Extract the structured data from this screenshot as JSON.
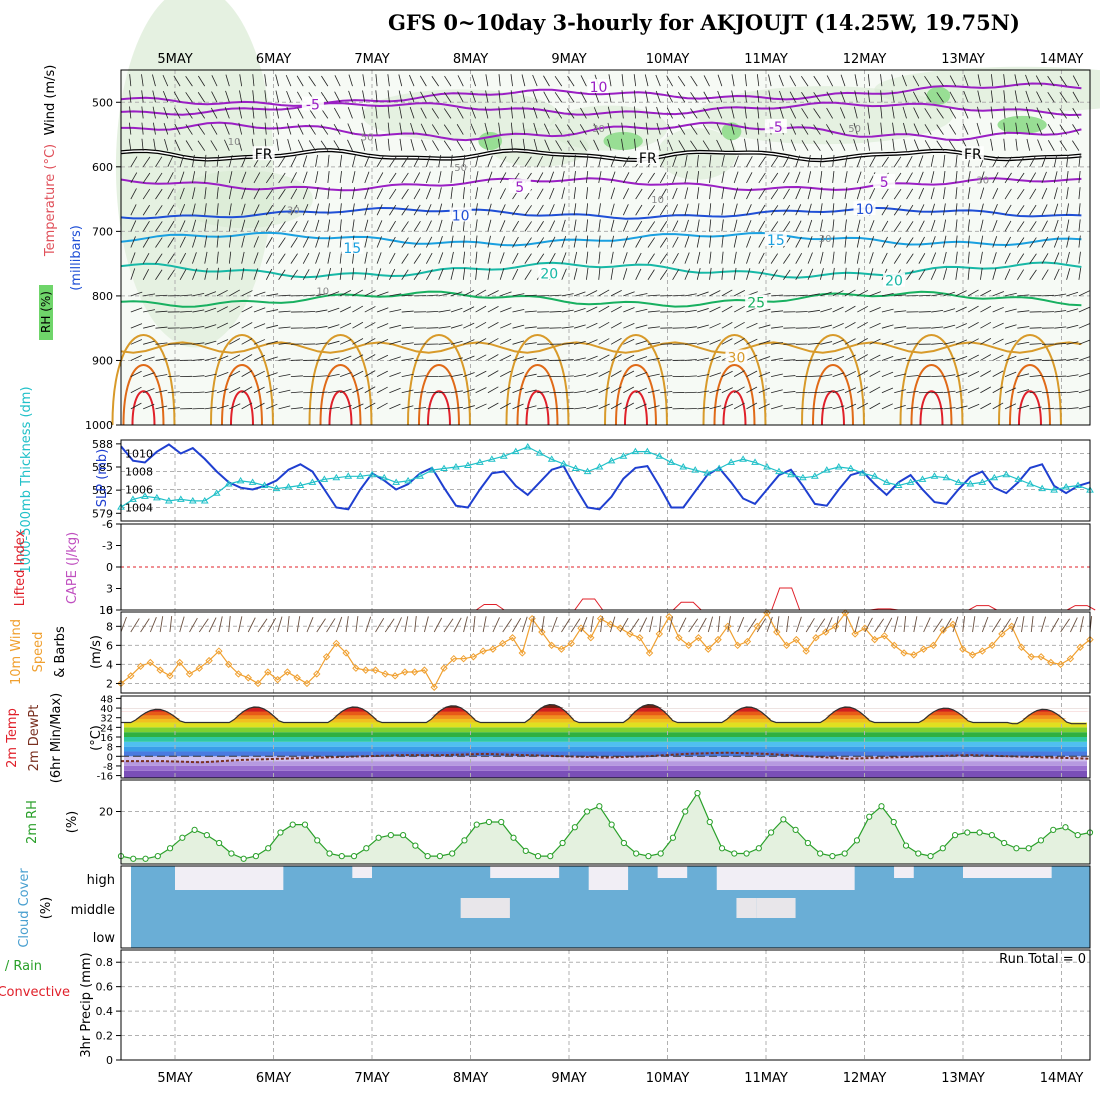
{
  "title": "GFS 0~10day 3-hourly for AKJOUJT (14.25W, 19.75N)",
  "colors": {
    "purple": "#9a1fc4",
    "blue": "#1f4fd6",
    "lightblue": "#1aa0e0",
    "teal": "#17b8a6",
    "green": "#18b060",
    "orange": "#d89a2a",
    "darkorange": "#e06a18",
    "red": "#e0202a",
    "slp": "#1f3fd0",
    "thickness": "#20c0c8",
    "wind": "#f0a030",
    "rh": "#2aa02a",
    "cloud": "#6aaed6",
    "grid": "#b0b0b0"
  },
  "chart_data": [
    {
      "id": "upper-air",
      "type": "contour",
      "dates": [
        "5MAY",
        "6MAY",
        "7MAY",
        "8MAY",
        "9MAY",
        "10MAY",
        "11MAY",
        "12MAY",
        "13MAY",
        "14MAY"
      ],
      "ylabel_wind": "Wind (m/s)",
      "ylabel_temp": "Temperature (°C)",
      "ylabel_rh": "RH (%)",
      "ylabel_units": "(millibars)",
      "yticks": [
        500,
        600,
        700,
        800,
        900,
        1000
      ],
      "ylim": [
        450,
        1000
      ],
      "freezing_label": "FR",
      "contour_labels": [
        {
          "text": "10",
          "value": 10,
          "day": 4.3,
          "p": 478,
          "color": "purple"
        },
        {
          "text": "-5",
          "value": -5,
          "day": 1.4,
          "p": 505,
          "color": "purple"
        },
        {
          "text": "-5",
          "value": -5,
          "day": 6.1,
          "p": 540,
          "color": "purple"
        },
        {
          "text": "FR",
          "value": 0,
          "day": 0.9,
          "p": 582,
          "color": "black"
        },
        {
          "text": "FR",
          "value": 0,
          "day": 4.8,
          "p": 588,
          "color": "black"
        },
        {
          "text": "FR",
          "value": 0,
          "day": 8.1,
          "p": 582,
          "color": "black"
        },
        {
          "text": "5",
          "value": 5,
          "day": 3.5,
          "p": 633,
          "color": "purple"
        },
        {
          "text": "5",
          "value": 5,
          "day": 7.2,
          "p": 625,
          "color": "purple"
        },
        {
          "text": "10",
          "value": 10,
          "day": 2.9,
          "p": 677,
          "color": "blue"
        },
        {
          "text": "10",
          "value": 10,
          "day": 7.0,
          "p": 667,
          "color": "blue"
        },
        {
          "text": "15",
          "value": 15,
          "day": 1.8,
          "p": 727,
          "color": "lightblue"
        },
        {
          "text": "15",
          "value": 15,
          "day": 6.1,
          "p": 715,
          "color": "lightblue"
        },
        {
          "text": "20",
          "value": 20,
          "day": 3.8,
          "p": 767,
          "color": "teal"
        },
        {
          "text": "20",
          "value": 20,
          "day": 7.3,
          "p": 778,
          "color": "teal"
        },
        {
          "text": "25",
          "value": 25,
          "day": 5.9,
          "p": 812,
          "color": "green"
        },
        {
          "text": "30",
          "value": 30,
          "day": 5.7,
          "p": 897,
          "color": "orange"
        }
      ],
      "rh_labels": [
        "10",
        "30",
        "50",
        "30",
        "50",
        "30",
        "50",
        "10",
        "30",
        "10"
      ]
    },
    {
      "id": "slp-thickness",
      "type": "line",
      "ylabel_left": "1000-500mb Thickness (dm)",
      "ylabel_right": "SLP (mb)",
      "left_ticks": [
        579,
        582,
        585,
        588
      ],
      "left_lim": [
        578,
        588.5
      ],
      "right_ticks": [
        1004,
        1006,
        1008,
        1010
      ],
      "right_lim": [
        1002.5,
        1011.5
      ],
      "series": [
        {
          "name": "SLP",
          "axis": "right",
          "values": [
            1010.8,
            1009.2,
            1009.0,
            1010.2,
            1011.0,
            1010.0,
            1010.6,
            1009.4,
            1008.0,
            1006.8,
            1006.2,
            1006.0,
            1006.4,
            1007.0,
            1008.2,
            1008.8,
            1008.0,
            1006.0,
            1004.0,
            1003.8,
            1006.0,
            1007.8,
            1007.0,
            1006.0,
            1006.6,
            1007.8,
            1008.4,
            1006.2,
            1004.2,
            1004.0,
            1006.0,
            1007.8,
            1008.0,
            1006.4,
            1005.4,
            1006.8,
            1008.2,
            1008.6,
            1006.2,
            1004.0,
            1003.8,
            1005.2,
            1007.2,
            1008.4,
            1008.6,
            1006.4,
            1004.0,
            1004.0,
            1005.8,
            1007.6,
            1008.4,
            1006.8,
            1005.0,
            1004.4,
            1006.0,
            1007.6,
            1008.2,
            1006.4,
            1004.4,
            1004.2,
            1006.0,
            1007.6,
            1008.0,
            1006.6,
            1005.4,
            1006.8,
            1007.6,
            1006.0,
            1004.6,
            1004.4,
            1006.0,
            1007.4,
            1008.0,
            1006.2,
            1005.6,
            1006.8,
            1008.4,
            1008.8,
            1006.4,
            1005.6,
            1006.4,
            1006.8
          ]
        },
        {
          "name": "Thickness",
          "axis": "left",
          "values": [
            579.8,
            580.8,
            581.2,
            581.0,
            580.6,
            580.8,
            580.6,
            580.6,
            581.6,
            582.8,
            583.2,
            583.0,
            582.6,
            582.2,
            582.4,
            582.6,
            583.0,
            583.4,
            583.6,
            583.8,
            583.8,
            584.0,
            583.6,
            583.0,
            583.2,
            583.8,
            584.6,
            584.8,
            585.0,
            585.2,
            585.6,
            586.0,
            586.4,
            587.0,
            587.6,
            586.8,
            586.0,
            585.4,
            584.8,
            584.4,
            585.0,
            585.8,
            586.4,
            587.0,
            587.0,
            586.4,
            585.6,
            585.0,
            584.6,
            584.2,
            584.8,
            585.6,
            586.0,
            585.6,
            585.0,
            584.4,
            584.0,
            583.6,
            583.8,
            584.6,
            585.0,
            584.8,
            584.2,
            583.8,
            583.0,
            582.6,
            583.0,
            583.4,
            583.8,
            583.6,
            583.0,
            582.8,
            583.0,
            583.6,
            584.0,
            583.4,
            582.8,
            582.2,
            582.0,
            582.4,
            582.6,
            582.0
          ]
        }
      ]
    },
    {
      "id": "li-cape",
      "type": "line",
      "ylabel_left": "Lifted Index",
      "ylabel_right": "CAPE (J/kg)",
      "yticks": [
        "-6",
        "-3",
        "0",
        "3",
        "6"
      ],
      "cape_peaks": [
        {
          "day": 3.2,
          "value": 5
        },
        {
          "day": 4.2,
          "value": 10
        },
        {
          "day": 5.2,
          "value": 7
        },
        {
          "day": 6.2,
          "value": 20
        },
        {
          "day": 7.2,
          "value": 1
        },
        {
          "day": 8.2,
          "value": 4
        },
        {
          "day": 9.2,
          "value": 4
        }
      ],
      "cape_max_label": "10"
    },
    {
      "id": "wind-10m",
      "type": "line",
      "ylabel_left": "10m Wind",
      "ylabel_mid": "Speed",
      "ylabel_right": "& Barbs",
      "units": "(m/s)",
      "yticks": [
        2,
        4,
        6,
        8
      ],
      "ylim": [
        1,
        9.5
      ],
      "values": [
        2.0,
        2.8,
        3.8,
        4.2,
        3.4,
        2.8,
        4.2,
        3.0,
        3.6,
        4.4,
        5.4,
        4.0,
        3.0,
        2.6,
        2.0,
        3.2,
        2.4,
        3.2,
        2.6,
        2.0,
        3.0,
        4.8,
        6.2,
        5.2,
        3.6,
        3.4,
        3.4,
        3.0,
        2.8,
        3.2,
        3.2,
        3.4,
        1.6,
        3.6,
        4.6,
        4.6,
        4.8,
        5.4,
        5.6,
        6.2,
        6.8,
        5.2,
        8.8,
        7.4,
        6.0,
        5.6,
        6.2,
        7.8,
        6.8,
        8.8,
        8.2,
        7.8,
        7.2,
        6.8,
        5.2,
        7.2,
        9.0,
        6.8,
        6.0,
        6.8,
        5.6,
        6.6,
        8.0,
        6.0,
        6.4,
        8.0,
        9.4,
        7.4,
        6.0,
        6.6,
        5.4,
        6.8,
        7.4,
        8.0,
        9.4,
        7.2,
        7.8,
        6.6,
        7.0,
        6.0,
        5.2,
        5.0,
        5.6,
        6.0,
        7.6,
        8.2,
        5.6,
        5.0,
        5.4,
        6.0,
        7.2,
        8.0,
        5.8,
        4.8,
        4.8,
        4.2,
        4.0,
        4.6,
        5.8,
        6.6
      ]
    },
    {
      "id": "temp-dewpt",
      "type": "area",
      "ylabel": "2m Temp",
      "ylabel2": "2m DewPt",
      "ylabel3": "(6hr Min/Max)",
      "units": "(°C)",
      "yticks": [
        "-16",
        "-8",
        "0",
        "8",
        "16",
        "24",
        "32",
        "40",
        "48"
      ],
      "ylim": [
        -18,
        50
      ],
      "daily_max": [
        39,
        41,
        41,
        42,
        43,
        43,
        41,
        41,
        40,
        39
      ],
      "daily_min": [
        28,
        28,
        28,
        28,
        28,
        28,
        28,
        28,
        28,
        27
      ],
      "dewpoint": [
        -4,
        -4,
        -5,
        -3,
        -2,
        -1,
        0,
        1,
        1,
        2,
        1,
        0,
        -1,
        0,
        2,
        3,
        2,
        0,
        -2,
        -1,
        0,
        1,
        0,
        -1,
        -2
      ]
    },
    {
      "id": "rh-2m",
      "type": "area",
      "ylabel": "2m RH",
      "units": "(%)",
      "yticks": [
        20
      ],
      "ylim": [
        0,
        32
      ],
      "values": [
        3,
        2,
        2,
        3,
        6,
        10,
        13,
        11,
        8,
        4,
        2,
        3,
        6,
        12,
        15,
        15,
        9,
        4,
        3,
        3,
        6,
        10,
        11,
        11,
        7,
        3,
        3,
        4,
        9,
        15,
        16,
        16,
        10,
        5,
        3,
        3,
        8,
        14,
        20,
        22,
        15,
        8,
        4,
        3,
        4,
        10,
        20,
        27,
        16,
        6,
        4,
        4,
        6,
        12,
        17,
        13,
        8,
        4,
        3,
        4,
        9,
        18,
        22,
        16,
        7,
        4,
        3,
        6,
        11,
        12,
        12,
        11,
        8,
        6,
        6,
        9,
        13,
        14,
        11,
        12
      ]
    },
    {
      "id": "cloud-cover",
      "type": "bar",
      "ylabel": "Cloud Cover",
      "units": "(%)",
      "levels": [
        "high",
        "middle",
        "low"
      ]
    },
    {
      "id": "precip",
      "type": "bar",
      "ylabel": "3hr Precip (mm)",
      "series_total": "Total / Rain",
      "series_conv": "Convective",
      "yticks": [
        "0",
        "0.2",
        "0.4",
        "0.6",
        "0.8"
      ],
      "ylim": [
        0,
        0.9
      ],
      "run_total": "Run Total = 0",
      "values": []
    }
  ]
}
